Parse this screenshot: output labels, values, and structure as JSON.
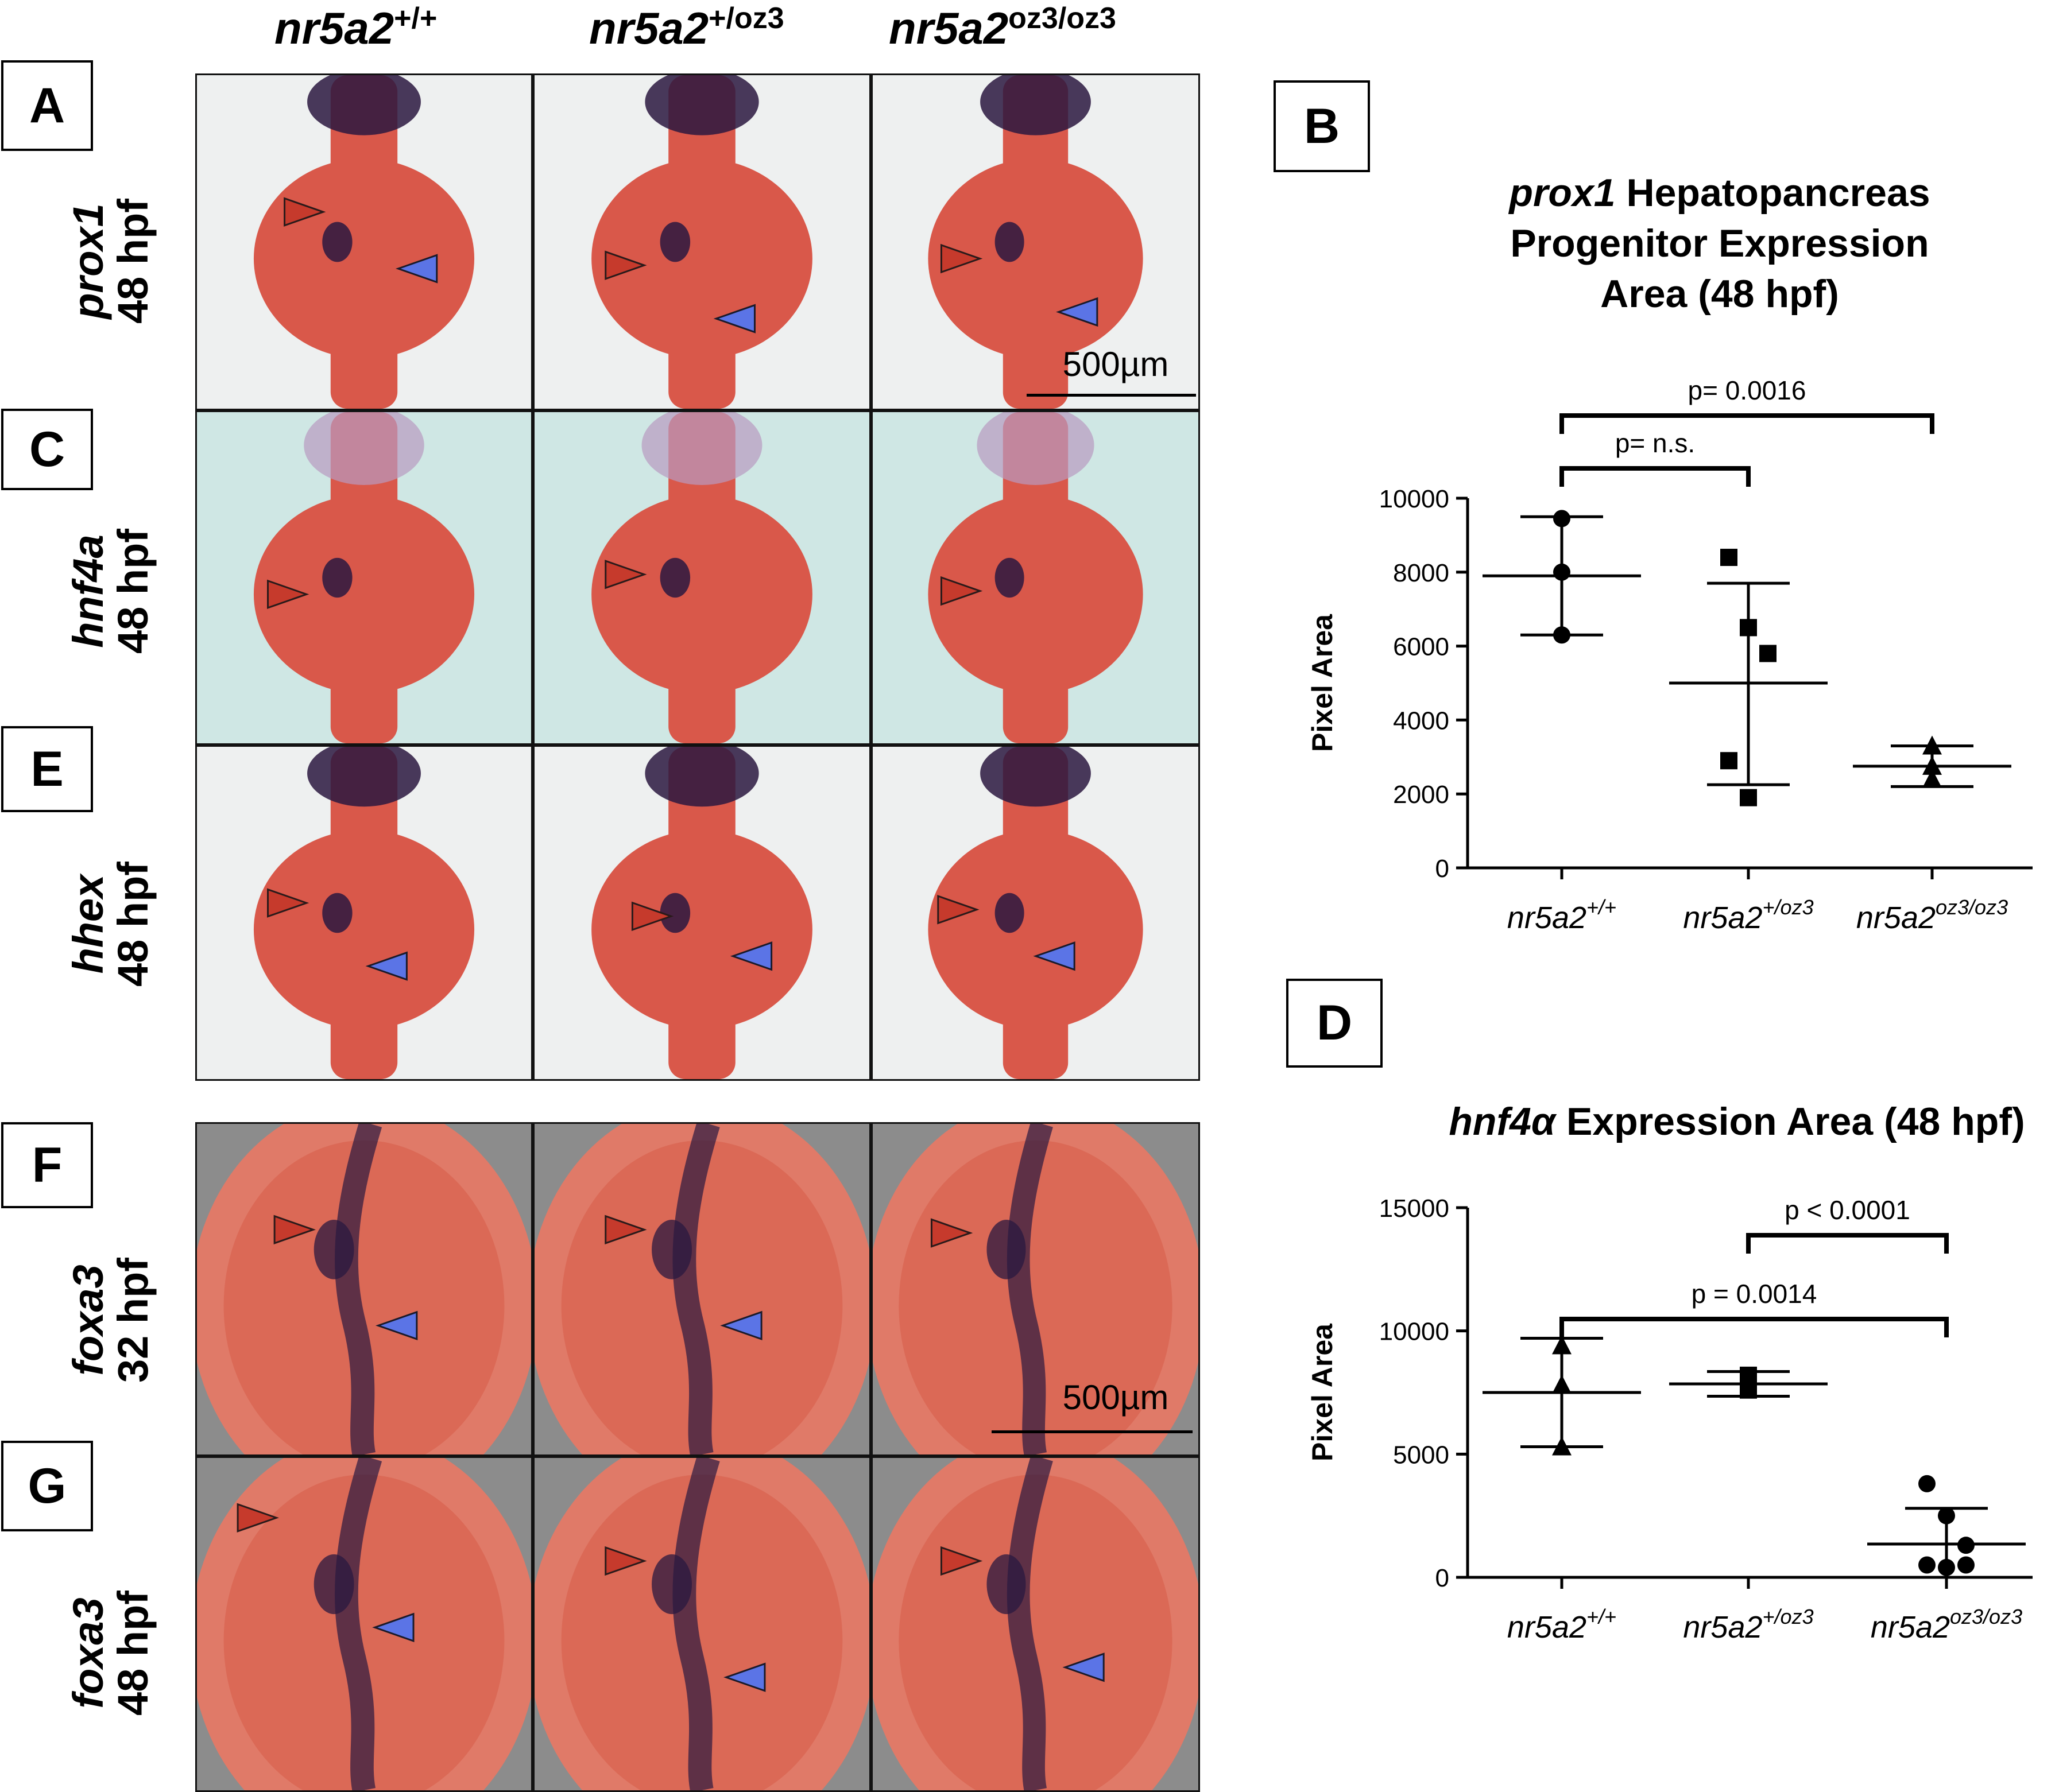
{
  "columns": [
    {
      "base": "nr5a2",
      "sup": "+/+"
    },
    {
      "base": "nr5a2",
      "sup": "+/oz3"
    },
    {
      "base": "nr5a2",
      "sup": "oz3/oz3"
    }
  ],
  "rows": [
    {
      "panel": "A",
      "gene": "prox1",
      "stage": "48 hpf",
      "scalebar": "500µm"
    },
    {
      "panel": "C",
      "gene": "hnf4a",
      "stage": "48 hpf"
    },
    {
      "panel": "E",
      "gene": "hhex",
      "stage": "48 hpf"
    },
    {
      "panel": "F",
      "gene": "foxa3",
      "stage": "32 hpf",
      "scalebar": "500µm"
    },
    {
      "panel": "G",
      "gene": "foxa3",
      "stage": "48 hpf"
    }
  ],
  "colors": {
    "embryo": "#d9584a",
    "stain": "#2a1840",
    "arrow_red": "#c63a2c",
    "arrow_blue": "#5b74e6",
    "bg_light": "#eef0f0",
    "bg_teal": "#cfe7e4",
    "bg_gray": "#8c8c8c"
  },
  "chart_data": [
    {
      "panel": "B",
      "type": "scatter",
      "title_italic": "prox1",
      "title_rest_line1": " Hepatopancreas",
      "title_line2": "Progenitor Expression",
      "title_line3": "Area (48 hpf)",
      "ylabel": "Pixel Area",
      "ylim": [
        0,
        10000
      ],
      "yticks": [
        0,
        2000,
        4000,
        6000,
        8000,
        10000
      ],
      "tick_labels": [
        "0",
        "2000",
        "4000",
        "6000",
        "8000",
        "10000"
      ],
      "categories": [
        {
          "base": "nr5a2",
          "sup": "+/+"
        },
        {
          "base": "nr5a2",
          "sup": "+/oz3"
        },
        {
          "base": "nr5a2",
          "sup": "oz3/oz3"
        }
      ],
      "series": [
        {
          "marker": "circle",
          "points": [
            9450,
            8000,
            6300
          ],
          "mean": 7900,
          "sd_low": 6300,
          "sd_high": 9500
        },
        {
          "marker": "square",
          "points": [
            8400,
            6500,
            5800,
            2900,
            1900
          ],
          "mean": 5000,
          "sd_low": 2250,
          "sd_high": 7700
        },
        {
          "marker": "triangle",
          "points": [
            3300,
            2750,
            2400
          ],
          "mean": 2750,
          "sd_low": 2200,
          "sd_high": 3300
        }
      ],
      "comparisons": [
        {
          "from": 0,
          "to": 1,
          "label": "p= n.s."
        },
        {
          "from": 0,
          "to": 2,
          "label": "p= 0.0016"
        }
      ]
    },
    {
      "panel": "D",
      "type": "scatter",
      "title_italic": "hnf4α",
      "title_rest_line1": " Expression Area (48 hpf)",
      "ylabel": "Pixel Area",
      "ylim": [
        0,
        15000
      ],
      "yticks": [
        0,
        5000,
        10000,
        15000
      ],
      "tick_labels": [
        "0",
        "5000",
        "10000",
        "15000"
      ],
      "categories": [
        {
          "base": "nr5a2",
          "sup": "+/+"
        },
        {
          "base": "nr5a2",
          "sup": "+/oz3"
        },
        {
          "base": "nr5a2",
          "sup": "oz3/oz3"
        }
      ],
      "series": [
        {
          "marker": "triangle",
          "points": [
            9400,
            7800,
            5300
          ],
          "mean": 7500,
          "sd_low": 5300,
          "sd_high": 9700
        },
        {
          "marker": "square",
          "points": [
            8200,
            7700,
            7600
          ],
          "mean": 7850,
          "sd_low": 7350,
          "sd_high": 8350
        },
        {
          "marker": "circle",
          "points": [
            3800,
            2500,
            1300,
            500,
            400,
            500
          ],
          "mean": 1350,
          "sd_low": 0,
          "sd_high": 2800
        }
      ],
      "comparisons": [
        {
          "from": 0,
          "to": 2,
          "label": "p = 0.0014"
        },
        {
          "from": 1,
          "to": 2,
          "label": "p < 0.0001"
        }
      ]
    }
  ]
}
